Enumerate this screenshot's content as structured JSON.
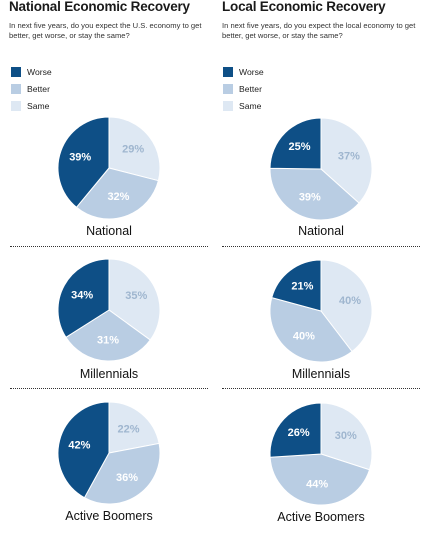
{
  "legend": [
    {
      "label": "Worse",
      "color": "#0e4f86"
    },
    {
      "label": "Better",
      "color": "#b9cde3"
    },
    {
      "label": "Same",
      "color": "#dee8f3"
    }
  ],
  "chart_data": [
    {
      "type": "pie",
      "title": "National Economic Recovery",
      "subtitle": "In next five years, do you expect the U.S. economy to get better, get worse, or stay the same?",
      "legend_position": "top-left",
      "categories": [
        "Worse",
        "Better",
        "Same"
      ],
      "series": [
        {
          "name": "National",
          "values": [
            39,
            32,
            29
          ]
        },
        {
          "name": "Millennials",
          "values": [
            34,
            31,
            35
          ]
        },
        {
          "name": "Active Boomers",
          "values": [
            42,
            36,
            22
          ]
        }
      ]
    },
    {
      "type": "pie",
      "title": "Local Economic Recovery",
      "subtitle": "In next five years, do you expect the local economy to get better, get worse, or stay the same?",
      "legend_position": "top-left",
      "categories": [
        "Worse",
        "Better",
        "Same"
      ],
      "series": [
        {
          "name": "National",
          "values": [
            25,
            39,
            37
          ]
        },
        {
          "name": "Millennials",
          "values": [
            21,
            40,
            40
          ]
        },
        {
          "name": "Active Boomers",
          "values": [
            26,
            44,
            30
          ]
        }
      ]
    }
  ]
}
